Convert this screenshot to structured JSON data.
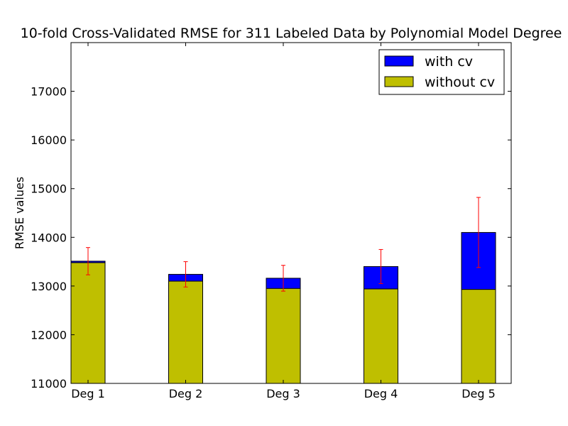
{
  "chart_data": {
    "type": "bar",
    "title": "10-fold Cross-Validated RMSE for 311 Labeled Data by Polynomial Model Degree",
    "xlabel": "",
    "ylabel": "RMSE values",
    "categories": [
      "Deg 1",
      "Deg 2",
      "Deg 3",
      "Deg 4",
      "Deg 5"
    ],
    "ylim": [
      11000,
      18000
    ],
    "yticks": [
      11000,
      12000,
      13000,
      14000,
      15000,
      16000,
      17000
    ],
    "grid": false,
    "legend_position": "top-right",
    "bar_mode": "overlay",
    "series": [
      {
        "name": "with cv",
        "color": "#0000ff",
        "values": [
          13510,
          13240,
          13160,
          13400,
          14100
        ],
        "error": [
          280,
          260,
          265,
          350,
          720
        ],
        "error_color": "#ff0000"
      },
      {
        "name": "without cv",
        "color": "#bfbf00",
        "values": [
          13480,
          13100,
          12950,
          12940,
          12930
        ]
      }
    ]
  }
}
